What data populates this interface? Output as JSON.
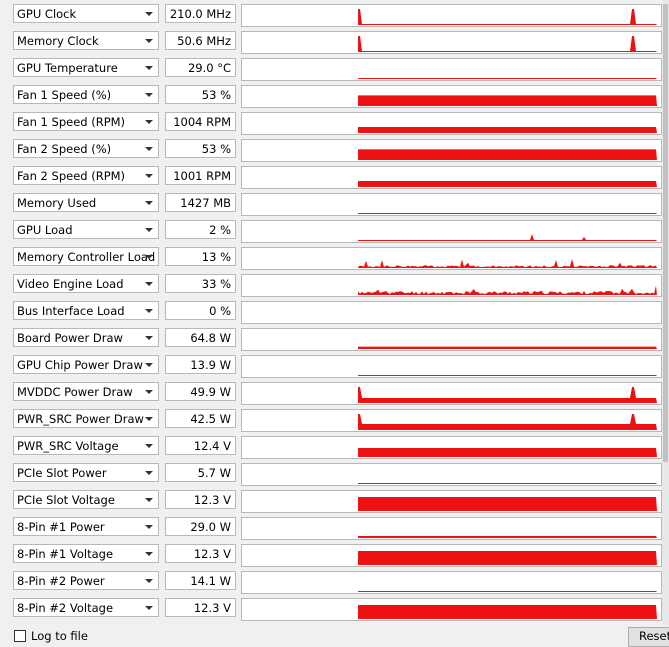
{
  "colors": {
    "graph_fill": "#ee1111"
  },
  "sensors": [
    {
      "name": "GPU Clock",
      "value": "210.0 MHz",
      "level": 0.05,
      "activity": "spiky"
    },
    {
      "name": "Memory Clock",
      "value": "50.6 MHz",
      "level": 0.03,
      "activity": "spiky"
    },
    {
      "name": "GPU Temperature",
      "value": "29.0 °C",
      "level": 0.05,
      "activity": "flat"
    },
    {
      "name": "Fan 1 Speed (%)",
      "value": "53 %",
      "level": 0.53,
      "activity": "flat"
    },
    {
      "name": "Fan 1 Speed (RPM)",
      "value": "1004 RPM",
      "level": 0.3,
      "activity": "flat"
    },
    {
      "name": "Fan 2 Speed (%)",
      "value": "53 %",
      "level": 0.53,
      "activity": "flat"
    },
    {
      "name": "Fan 2 Speed (RPM)",
      "value": "1001 RPM",
      "level": 0.3,
      "activity": "flat"
    },
    {
      "name": "Memory Used",
      "value": "1427 MB",
      "level": 0.03,
      "activity": "flat"
    },
    {
      "name": "GPU Load",
      "value": "2 %",
      "level": 0.03,
      "activity": "noisy"
    },
    {
      "name": "Memory Controller Load",
      "value": "13 %",
      "level": 0.1,
      "activity": "noisy"
    },
    {
      "name": "Video Engine Load",
      "value": "33 %",
      "level": 0.15,
      "activity": "noisy"
    },
    {
      "name": "Bus Interface Load",
      "value": "0 %",
      "level": 0,
      "activity": "none"
    },
    {
      "name": "Board Power Draw",
      "value": "64.8 W",
      "level": 0.12,
      "activity": "flat"
    },
    {
      "name": "GPU Chip Power Draw",
      "value": "13.9 W",
      "level": 0.05,
      "activity": "flat"
    },
    {
      "name": "MVDDC Power Draw",
      "value": "49.9 W",
      "level": 0.25,
      "activity": "spiky"
    },
    {
      "name": "PWR_SRC Power Draw",
      "value": "42.5 W",
      "level": 0.3,
      "activity": "spiky"
    },
    {
      "name": "PWR_SRC Voltage",
      "value": "12.4 V",
      "level": 0.45,
      "activity": "flat"
    },
    {
      "name": "PCIe Slot Power",
      "value": "5.7 W",
      "level": 0.05,
      "activity": "flat"
    },
    {
      "name": "PCIe Slot Voltage",
      "value": "12.3 V",
      "level": 0.7,
      "activity": "flat"
    },
    {
      "name": "8-Pin #1 Power",
      "value": "29.0 W",
      "level": 0.1,
      "activity": "flat"
    },
    {
      "name": "8-Pin #1 Voltage",
      "value": "12.3 V",
      "level": 0.7,
      "activity": "flat"
    },
    {
      "name": "8-Pin #2 Power",
      "value": "14.1 W",
      "level": 0.05,
      "activity": "flat"
    },
    {
      "name": "8-Pin #2 Voltage",
      "value": "12.3 V",
      "level": 0.7,
      "activity": "flat"
    }
  ],
  "footer": {
    "checkbox_label": "Log to file",
    "button_label": "Reset"
  }
}
